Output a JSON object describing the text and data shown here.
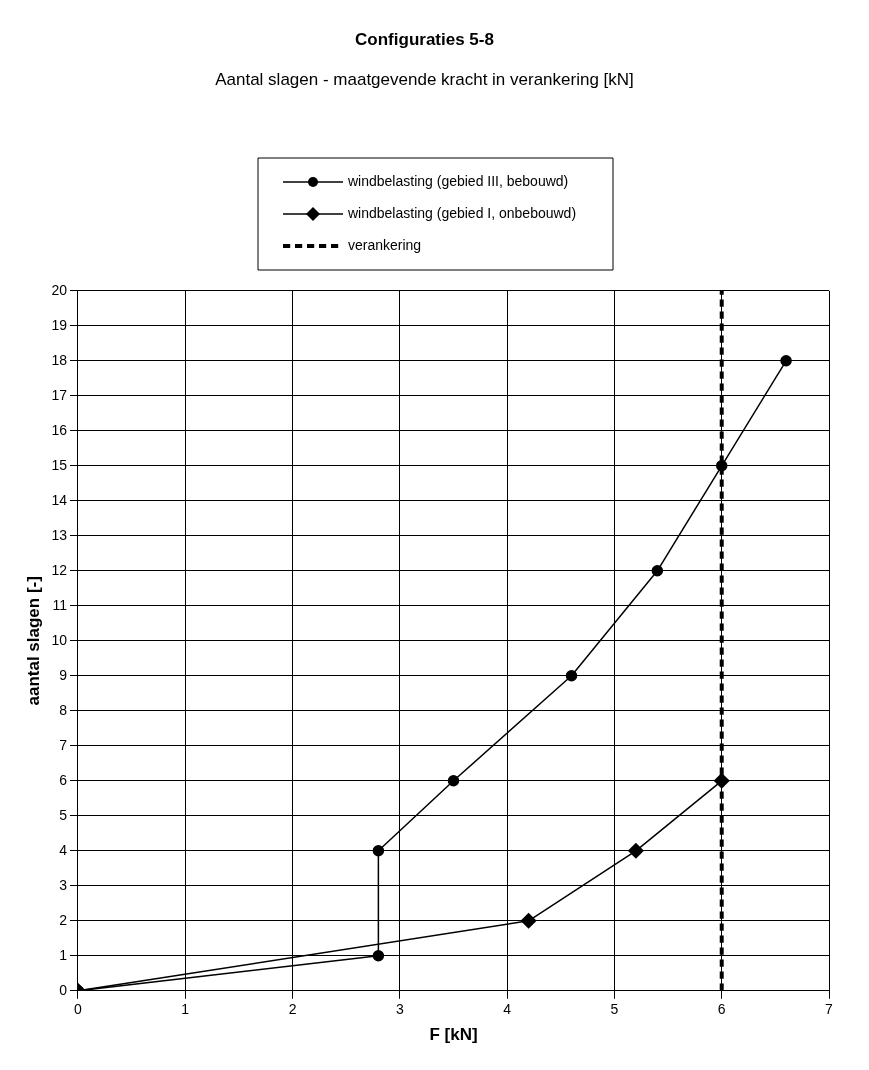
{
  "chart_data": {
    "type": "line",
    "title": "Configuraties 5-8",
    "subtitle": "Aantal slagen - maatgevende kracht in verankering [kN]",
    "xlabel": "F [kN]",
    "ylabel": "aantal slagen [-]",
    "series": [
      {
        "name": "windbelasting (gebied III, bebouwd)",
        "color": "#000000",
        "marker": "circle",
        "x": [
          0,
          2.8,
          2.8,
          3.5,
          4.6,
          5.4,
          6.0,
          6.6
        ],
        "values": [
          0,
          1,
          4,
          6,
          9,
          12,
          15,
          18
        ]
      },
      {
        "name": "windbelasting (gebied I, onbebouwd)",
        "color": "#000000",
        "marker": "diamond",
        "x": [
          0,
          4.2,
          5.2,
          6.0
        ],
        "values": [
          0,
          2,
          4,
          6
        ]
      }
    ],
    "ref_lines": [
      {
        "axis": "x",
        "value": 6,
        "label": "verankering",
        "color": "#000000",
        "line_style": "dashed"
      }
    ],
    "xlim": [
      0,
      7
    ],
    "xticks": [
      0,
      1,
      2,
      3,
      4,
      5,
      6,
      7
    ],
    "ylim": [
      0,
      20
    ],
    "yticks": [
      0,
      1,
      2,
      3,
      4,
      5,
      6,
      7,
      8,
      9,
      10,
      11,
      12,
      13,
      14,
      15,
      16,
      17,
      18,
      19,
      20
    ],
    "grid": true,
    "legend": "top",
    "line_style": "solid"
  }
}
